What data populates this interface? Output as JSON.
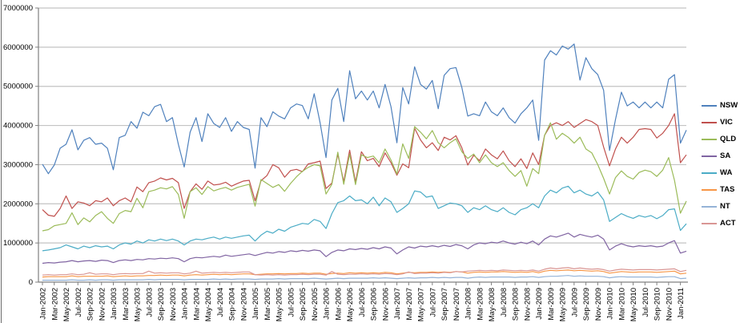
{
  "chart_data": {
    "type": "line",
    "title": "",
    "xlabel": "",
    "ylabel": "",
    "legend_position": "right",
    "grid": "horizontal gridlines every 1000000",
    "y_axis": {
      "min": 0,
      "max": 7000000,
      "tick_step": 1000000,
      "tick_labels": [
        "0",
        "1000000",
        "2000000",
        "3000000",
        "4000000",
        "5000000",
        "6000000",
        "7000000"
      ]
    },
    "x_axis": {
      "interval": "monthly",
      "start": "Jan-2002",
      "end": "Feb-2011",
      "points": 110,
      "label_every_n_months": 2,
      "tick_labels": [
        "Jan-2002",
        "Mar-2002",
        "May-2002",
        "Jul-2002",
        "Sep-2002",
        "Nov-2002",
        "Jan-2003",
        "Mar-2003",
        "May-2003",
        "Jul-2003",
        "Sep-2003",
        "Nov-2003",
        "Jan-2004",
        "Mar-2004",
        "May-2004",
        "Jul-2004",
        "Sep-2004",
        "Nov-2004",
        "Jan-2005",
        "Mar-2005",
        "May-2005",
        "Jul-2005",
        "Sep-2005",
        "Nov-2005",
        "Jan-2006",
        "Mar-2006",
        "May-2006",
        "Jul-2006",
        "Sep-2006",
        "Nov-2006",
        "Jan-2007",
        "Mar-2007",
        "May-2007",
        "Jul-2007",
        "Sep-2007",
        "Nov-2007",
        "Jan-2008",
        "Mar-2008",
        "May-2008",
        "Jul-2008",
        "Sep-2008",
        "Nov-2008",
        "Jan-2009",
        "Mar-2009",
        "May-2009",
        "Jul-2009",
        "Sep-2009",
        "Nov-2009",
        "Jan-2010",
        "Mar-2010",
        "May-2010",
        "Jul-2010",
        "Sep-2010",
        "Nov-2010",
        "Jan-2011"
      ]
    },
    "values_unit_multiplier": 1000000,
    "series": [
      {
        "name": "NSW",
        "color": "#4F81BD",
        "values_millions": [
          3.01,
          2.77,
          2.99,
          3.42,
          3.52,
          3.89,
          3.38,
          3.62,
          3.69,
          3.52,
          3.55,
          3.42,
          2.87,
          3.69,
          3.75,
          4.1,
          3.93,
          4.34,
          4.25,
          4.48,
          4.54,
          4.1,
          4.2,
          3.52,
          2.94,
          3.83,
          4.2,
          3.59,
          4.3,
          4.05,
          3.95,
          4.2,
          3.85,
          4.1,
          3.95,
          3.9,
          2.91,
          4.2,
          3.97,
          4.35,
          4.24,
          4.17,
          4.45,
          4.55,
          4.51,
          4.17,
          4.81,
          4.07,
          3.18,
          4.65,
          4.95,
          4.1,
          5.4,
          4.68,
          4.88,
          4.65,
          4.88,
          4.45,
          5.05,
          4.48,
          3.56,
          4.97,
          4.55,
          5.5,
          5.05,
          4.93,
          5.15,
          4.43,
          5.28,
          5.45,
          5.48,
          4.97,
          4.24,
          4.3,
          4.25,
          4.6,
          4.35,
          4.25,
          4.45,
          4.2,
          4.06,
          4.3,
          4.45,
          4.65,
          3.62,
          5.67,
          5.91,
          5.8,
          6.03,
          5.95,
          6.08,
          5.16,
          5.73,
          5.45,
          5.3,
          4.9,
          3.36,
          4.15,
          4.85,
          4.5,
          4.6,
          4.45,
          4.6,
          4.45,
          4.6,
          4.45,
          5.18,
          5.3,
          3.55,
          3.88
        ]
      },
      {
        "name": "VIC",
        "color": "#C0504D",
        "values_millions": [
          1.85,
          1.71,
          1.68,
          1.88,
          2.2,
          1.88,
          2.05,
          2.02,
          1.95,
          2.08,
          2.05,
          2.15,
          1.95,
          2.08,
          2.15,
          2.05,
          2.43,
          2.31,
          2.54,
          2.58,
          2.66,
          2.61,
          2.65,
          2.54,
          1.88,
          2.31,
          2.51,
          2.37,
          2.58,
          2.48,
          2.5,
          2.55,
          2.45,
          2.52,
          2.58,
          2.6,
          2.08,
          2.59,
          2.72,
          3.0,
          2.92,
          2.68,
          2.85,
          2.88,
          2.82,
          3.02,
          3.05,
          3.09,
          2.39,
          2.53,
          3.27,
          2.56,
          3.37,
          2.55,
          3.33,
          3.1,
          3.16,
          2.95,
          3.3,
          3.05,
          2.73,
          3.02,
          2.92,
          3.93,
          3.63,
          3.43,
          3.56,
          3.36,
          3.7,
          3.63,
          3.74,
          3.43,
          2.99,
          3.24,
          3.1,
          3.4,
          3.25,
          3.15,
          3.35,
          3.1,
          2.95,
          3.15,
          2.9,
          3.3,
          3.0,
          3.75,
          4.0,
          4.07,
          4.0,
          4.1,
          3.95,
          4.05,
          4.15,
          4.1,
          4.0,
          3.45,
          2.97,
          3.4,
          3.7,
          3.55,
          3.7,
          3.9,
          3.92,
          3.9,
          3.68,
          3.8,
          4.0,
          4.3,
          3.05,
          3.25
        ]
      },
      {
        "name": "QLD",
        "color": "#9BBB59",
        "values_millions": [
          1.31,
          1.34,
          1.44,
          1.47,
          1.5,
          1.77,
          1.47,
          1.64,
          1.54,
          1.7,
          1.8,
          1.63,
          1.5,
          1.75,
          1.83,
          1.8,
          2.14,
          1.9,
          2.31,
          2.35,
          2.41,
          2.38,
          2.44,
          2.24,
          1.63,
          2.31,
          2.41,
          2.24,
          2.44,
          2.33,
          2.38,
          2.42,
          2.35,
          2.42,
          2.46,
          2.5,
          1.94,
          2.62,
          2.52,
          2.42,
          2.49,
          2.32,
          2.52,
          2.69,
          2.83,
          2.93,
          3.0,
          2.97,
          2.25,
          2.5,
          3.32,
          2.5,
          3.27,
          2.49,
          3.25,
          3.18,
          3.22,
          3.05,
          3.4,
          3.12,
          2.76,
          3.53,
          3.16,
          3.97,
          3.83,
          3.66,
          3.87,
          3.56,
          3.43,
          3.56,
          3.66,
          3.33,
          3.16,
          3.27,
          3.05,
          3.25,
          3.05,
          2.95,
          3.05,
          2.85,
          2.7,
          2.85,
          2.45,
          2.9,
          2.77,
          3.75,
          4.07,
          3.65,
          3.8,
          3.7,
          3.55,
          3.7,
          3.4,
          3.3,
          3.0,
          2.65,
          2.25,
          2.67,
          2.84,
          2.7,
          2.63,
          2.8,
          2.86,
          2.82,
          2.7,
          2.86,
          3.18,
          2.6,
          1.76,
          2.07
        ]
      },
      {
        "name": "SA",
        "color": "#8064A2",
        "values_millions": [
          0.48,
          0.5,
          0.49,
          0.51,
          0.52,
          0.55,
          0.52,
          0.54,
          0.55,
          0.53,
          0.56,
          0.55,
          0.5,
          0.55,
          0.57,
          0.55,
          0.58,
          0.57,
          0.6,
          0.59,
          0.61,
          0.6,
          0.62,
          0.6,
          0.52,
          0.6,
          0.63,
          0.62,
          0.64,
          0.66,
          0.64,
          0.69,
          0.66,
          0.68,
          0.7,
          0.72,
          0.68,
          0.72,
          0.76,
          0.74,
          0.78,
          0.76,
          0.8,
          0.78,
          0.81,
          0.79,
          0.82,
          0.8,
          0.65,
          0.76,
          0.82,
          0.8,
          0.85,
          0.83,
          0.86,
          0.84,
          0.88,
          0.85,
          0.9,
          0.87,
          0.72,
          0.82,
          0.9,
          0.87,
          0.92,
          0.9,
          0.93,
          0.9,
          0.94,
          0.91,
          0.96,
          0.93,
          0.85,
          0.95,
          1.0,
          0.98,
          1.02,
          1.0,
          1.05,
          1.0,
          0.97,
          1.02,
          0.98,
          1.05,
          0.95,
          1.1,
          1.18,
          1.15,
          1.2,
          1.25,
          1.15,
          1.22,
          1.18,
          1.15,
          1.2,
          1.1,
          0.82,
          0.92,
          0.98,
          0.93,
          0.9,
          0.93,
          0.91,
          0.93,
          0.9,
          0.92,
          1.0,
          1.06,
          0.74,
          0.79
        ]
      },
      {
        "name": "WA",
        "color": "#4BACC6",
        "values_millions": [
          0.8,
          0.82,
          0.85,
          0.88,
          0.95,
          0.9,
          0.85,
          0.92,
          0.88,
          0.93,
          0.9,
          0.92,
          0.85,
          0.95,
          1.0,
          0.97,
          1.05,
          1.0,
          1.08,
          1.05,
          1.1,
          1.06,
          1.1,
          1.05,
          0.95,
          1.05,
          1.1,
          1.08,
          1.12,
          1.15,
          1.1,
          1.15,
          1.12,
          1.15,
          1.18,
          1.2,
          1.05,
          1.2,
          1.3,
          1.25,
          1.35,
          1.3,
          1.4,
          1.45,
          1.5,
          1.48,
          1.6,
          1.55,
          1.37,
          1.75,
          2.03,
          2.08,
          2.2,
          2.08,
          2.1,
          2.0,
          2.17,
          1.95,
          2.15,
          2.05,
          1.78,
          1.88,
          2.0,
          2.33,
          2.3,
          2.17,
          2.2,
          1.88,
          1.95,
          2.02,
          2.0,
          1.95,
          1.78,
          1.9,
          1.85,
          1.95,
          1.85,
          1.8,
          1.9,
          1.78,
          1.72,
          1.85,
          1.9,
          2.0,
          1.9,
          2.2,
          2.35,
          2.28,
          2.4,
          2.45,
          2.28,
          2.35,
          2.25,
          2.2,
          2.3,
          2.1,
          1.55,
          1.65,
          1.75,
          1.68,
          1.63,
          1.7,
          1.66,
          1.7,
          1.62,
          1.7,
          1.85,
          1.87,
          1.32,
          1.49
        ]
      },
      {
        "name": "TAS",
        "color": "#F79646",
        "values_millions": [
          0.13,
          0.14,
          0.14,
          0.14,
          0.14,
          0.16,
          0.14,
          0.15,
          0.15,
          0.15,
          0.15,
          0.16,
          0.14,
          0.15,
          0.16,
          0.15,
          0.16,
          0.16,
          0.17,
          0.17,
          0.18,
          0.17,
          0.18,
          0.18,
          0.16,
          0.18,
          0.19,
          0.18,
          0.19,
          0.2,
          0.19,
          0.2,
          0.19,
          0.2,
          0.21,
          0.21,
          0.19,
          0.2,
          0.21,
          0.21,
          0.22,
          0.21,
          0.22,
          0.22,
          0.23,
          0.22,
          0.23,
          0.23,
          0.2,
          0.22,
          0.23,
          0.22,
          0.24,
          0.23,
          0.24,
          0.23,
          0.24,
          0.23,
          0.25,
          0.24,
          0.21,
          0.23,
          0.25,
          0.24,
          0.25,
          0.25,
          0.26,
          0.25,
          0.26,
          0.25,
          0.27,
          0.26,
          0.23,
          0.25,
          0.26,
          0.25,
          0.26,
          0.26,
          0.27,
          0.26,
          0.25,
          0.26,
          0.25,
          0.27,
          0.24,
          0.28,
          0.3,
          0.29,
          0.3,
          0.31,
          0.29,
          0.3,
          0.29,
          0.28,
          0.29,
          0.27,
          0.23,
          0.25,
          0.27,
          0.26,
          0.25,
          0.26,
          0.26,
          0.26,
          0.25,
          0.26,
          0.27,
          0.28,
          0.21,
          0.23
        ]
      },
      {
        "name": "NT",
        "color": "#95B3D7",
        "values_millions": [
          0.05,
          0.05,
          0.05,
          0.05,
          0.05,
          0.06,
          0.05,
          0.05,
          0.06,
          0.05,
          0.06,
          0.06,
          0.05,
          0.06,
          0.06,
          0.06,
          0.06,
          0.06,
          0.07,
          0.06,
          0.07,
          0.07,
          0.07,
          0.07,
          0.06,
          0.07,
          0.07,
          0.07,
          0.07,
          0.08,
          0.07,
          0.08,
          0.07,
          0.08,
          0.08,
          0.08,
          0.07,
          0.08,
          0.08,
          0.08,
          0.09,
          0.08,
          0.09,
          0.09,
          0.09,
          0.09,
          0.1,
          0.09,
          0.08,
          0.09,
          0.1,
          0.09,
          0.1,
          0.1,
          0.1,
          0.1,
          0.11,
          0.1,
          0.11,
          0.1,
          0.09,
          0.1,
          0.11,
          0.1,
          0.11,
          0.11,
          0.12,
          0.11,
          0.12,
          0.11,
          0.12,
          0.12,
          0.1,
          0.12,
          0.13,
          0.12,
          0.13,
          0.13,
          0.13,
          0.13,
          0.12,
          0.13,
          0.13,
          0.14,
          0.12,
          0.14,
          0.15,
          0.15,
          0.16,
          0.17,
          0.15,
          0.16,
          0.15,
          0.15,
          0.15,
          0.14,
          0.11,
          0.13,
          0.14,
          0.13,
          0.13,
          0.13,
          0.13,
          0.13,
          0.12,
          0.13,
          0.14,
          0.14,
          0.09,
          0.1
        ]
      },
      {
        "name": "ACT",
        "color": "#D99694",
        "values_millions": [
          0.18,
          0.19,
          0.18,
          0.19,
          0.19,
          0.21,
          0.19,
          0.2,
          0.24,
          0.2,
          0.21,
          0.21,
          0.19,
          0.21,
          0.22,
          0.21,
          0.22,
          0.22,
          0.28,
          0.23,
          0.24,
          0.23,
          0.24,
          0.24,
          0.21,
          0.23,
          0.28,
          0.23,
          0.24,
          0.25,
          0.24,
          0.25,
          0.24,
          0.25,
          0.26,
          0.26,
          0.19,
          0.18,
          0.19,
          0.18,
          0.19,
          0.18,
          0.19,
          0.19,
          0.2,
          0.19,
          0.2,
          0.2,
          0.18,
          0.27,
          0.2,
          0.19,
          0.2,
          0.2,
          0.21,
          0.2,
          0.21,
          0.2,
          0.22,
          0.21,
          0.19,
          0.21,
          0.26,
          0.22,
          0.23,
          0.23,
          0.24,
          0.23,
          0.25,
          0.24,
          0.27,
          0.26,
          0.28,
          0.29,
          0.3,
          0.29,
          0.3,
          0.29,
          0.31,
          0.3,
          0.29,
          0.3,
          0.29,
          0.31,
          0.28,
          0.33,
          0.36,
          0.34,
          0.36,
          0.37,
          0.34,
          0.36,
          0.34,
          0.33,
          0.34,
          0.32,
          0.28,
          0.31,
          0.33,
          0.32,
          0.31,
          0.32,
          0.32,
          0.32,
          0.31,
          0.32,
          0.33,
          0.34,
          0.27,
          0.3
        ]
      }
    ],
    "style": {
      "gridline_color": "#C3C3C3",
      "axis_color": "#808080",
      "tick_label_color": "#000000",
      "background": "#FFFFFF"
    }
  }
}
